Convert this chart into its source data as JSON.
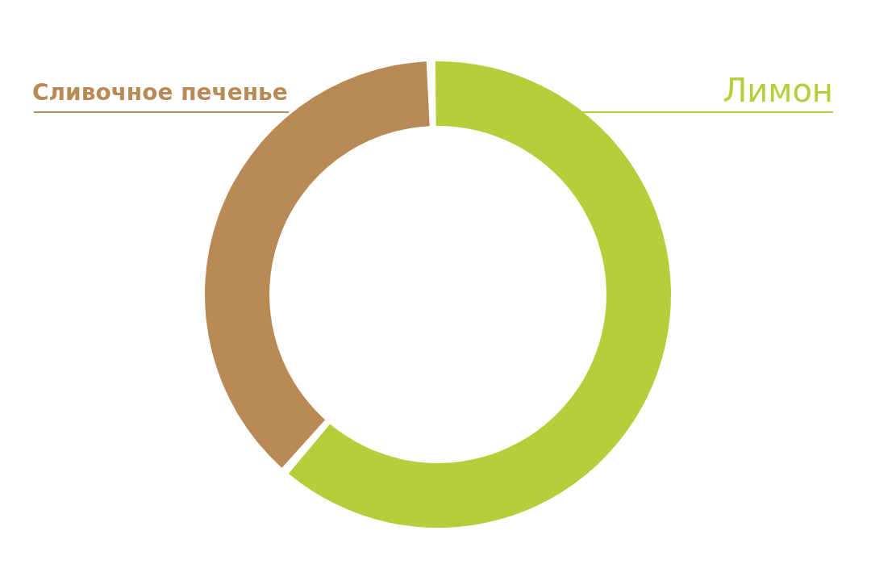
{
  "chart_data": {
    "type": "donut",
    "categories": [
      "Лимон",
      "Сливочное печенье"
    ],
    "values": [
      62,
      38
    ],
    "colors": [
      "#b5cf3c",
      "#b98a55"
    ],
    "legend": false
  }
}
